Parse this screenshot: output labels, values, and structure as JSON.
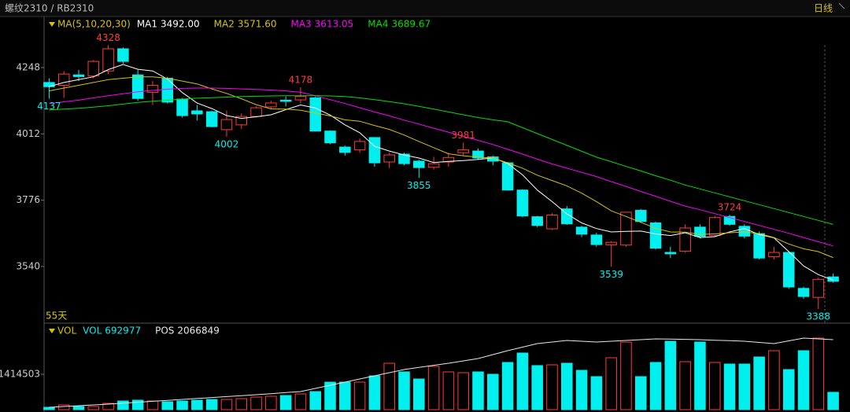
{
  "header": {
    "symbol": "螺纹2310 / RB2310",
    "period": "日线"
  },
  "chart_data": [
    {
      "type": "candlestick",
      "legend_title": "MA(5,10,20,30)",
      "period_label": "55天",
      "up_color": "#ff3b3b",
      "down_color": "#00f0f0",
      "open": [
        4195,
        4185,
        4222,
        4218,
        4236,
        4315,
        4222,
        4160,
        4210,
        4136,
        4094,
        4091,
        4027,
        4044,
        4074,
        4108,
        4132,
        4133,
        4140,
        4022,
        3965,
        3955,
        3999,
        3912,
        3940,
        3915,
        3893,
        3912,
        3945,
        3951,
        3930,
        3909,
        3812,
        3717,
        3674,
        3745,
        3680,
        3652,
        3617,
        3616,
        3740,
        3695,
        3590,
        3594,
        3680,
        3650,
        3718,
        3683,
        3657,
        3575,
        3590,
        3462,
        3430,
        3503
      ],
      "high": [
        4210,
        4235,
        4240,
        4275,
        4328,
        4320,
        4240,
        4200,
        4215,
        4140,
        4115,
        4095,
        4095,
        4085,
        4110,
        4130,
        4145,
        4178,
        4145,
        4025,
        3970,
        3995,
        4000,
        3945,
        3945,
        3920,
        3930,
        3945,
        3981,
        3960,
        3935,
        3912,
        3815,
        3720,
        3730,
        3755,
        3685,
        3660,
        3630,
        3735,
        3745,
        3700,
        3610,
        3690,
        3690,
        3720,
        3724,
        3690,
        3665,
        3610,
        3595,
        3468,
        3500,
        3515
      ],
      "low": [
        4137,
        4140,
        4200,
        4210,
        4225,
        4262,
        4130,
        4115,
        4120,
        4070,
        4060,
        4035,
        4002,
        4030,
        4070,
        4100,
        4110,
        4120,
        4020,
        3975,
        3935,
        3945,
        3895,
        3890,
        3900,
        3855,
        3885,
        3895,
        3935,
        3920,
        3900,
        3810,
        3715,
        3680,
        3670,
        3688,
        3645,
        3610,
        3539,
        3610,
        3695,
        3600,
        3570,
        3590,
        3640,
        3645,
        3685,
        3640,
        3565,
        3565,
        3460,
        3425,
        3388,
        3482
      ],
      "close": [
        4180,
        4225,
        4216,
        4270,
        4315,
        4270,
        4138,
        4185,
        4125,
        4077,
        4083,
        4038,
        4063,
        4074,
        4105,
        4122,
        4128,
        4145,
        4022,
        3980,
        3946,
        3985,
        3909,
        3937,
        3906,
        3892,
        3906,
        3928,
        3955,
        3926,
        3915,
        3812,
        3720,
        3686,
        3723,
        3692,
        3655,
        3618,
        3626,
        3733,
        3700,
        3605,
        3585,
        3677,
        3647,
        3714,
        3690,
        3648,
        3570,
        3590,
        3467,
        3433,
        3494,
        3487
      ],
      "labeled_highs": [
        4,
        17,
        28,
        46
      ],
      "labeled_lows": [
        0,
        12,
        25,
        38,
        52
      ],
      "series": [
        {
          "name": "MA1",
          "color": "#ffffff",
          "current": {
            "value": 3492,
            "label": "3492.00"
          },
          "values": [
            4180,
            4195,
            4205,
            4215,
            4241,
            4259,
            4242,
            4236,
            4207,
            4159,
            4122,
            4102,
            4077,
            4067,
            4073,
            4080,
            4098,
            4115,
            4104,
            4079,
            4044,
            4016,
            3968,
            3951,
            3937,
            3926,
            3910,
            3914,
            3917,
            3921,
            3926,
            3907,
            3866,
            3812,
            3771,
            3727,
            3695,
            3675,
            3663,
            3665,
            3666,
            3656,
            3650,
            3660,
            3643,
            3646,
            3663,
            3675,
            3654,
            3642,
            3593,
            3542,
            3511,
            3492
          ]
        },
        {
          "name": "MA2",
          "color": "#d8c400",
          "current": {
            "value": 3571.6,
            "label": "3571.60"
          },
          "values": [
            4165,
            4175,
            4185,
            4195,
            4205,
            4210,
            4215,
            4215,
            4210,
            4200,
            4190,
            4172,
            4156,
            4137,
            4116,
            4101,
            4100,
            4096,
            4086,
            4076,
            4062,
            4057,
            4042,
            4028,
            4008,
            3985,
            3963,
            3941,
            3934,
            3929,
            3926,
            3909,
            3890,
            3865,
            3846,
            3827,
            3801,
            3771,
            3738,
            3718,
            3697,
            3676,
            3663,
            3662,
            3654,
            3656,
            3660,
            3663,
            3657,
            3643,
            3620,
            3603,
            3593,
            3571.6
          ]
        },
        {
          "name": "MA3",
          "color": "#ff00ff",
          "current": 3613.05,
          "values": [
            4120,
            4126,
            4132,
            4140,
            4148,
            4155,
            4162,
            4167,
            4171,
            4174,
            4175,
            4175,
            4174,
            4172,
            4170,
            4168,
            4165,
            4160,
            4148,
            4134,
            4120,
            4105,
            4090,
            4076,
            4061,
            4047,
            4032,
            4018,
            4003,
            3989,
            3974,
            3957,
            3940,
            3922,
            3905,
            3890,
            3875,
            3860,
            3842,
            3825,
            3807,
            3790,
            3772,
            3755,
            3742,
            3728,
            3714,
            3700,
            3686,
            3672,
            3658,
            3643,
            3628,
            3613.05
          ]
        },
        {
          "name": "MA4",
          "color": "#00e000",
          "current": 3689.67,
          "values": [
            4097,
            4100,
            4103,
            4107,
            4112,
            4118,
            4124,
            4128,
            4132,
            4136,
            4139,
            4141,
            4143,
            4145,
            4146,
            4147,
            4148,
            4148,
            4148,
            4147,
            4145,
            4140,
            4134,
            4127,
            4119,
            4110,
            4100,
            4090,
            4080,
            4070,
            4062,
            4055,
            4034,
            4013,
            3992,
            3971,
            3950,
            3929,
            3913,
            3896,
            3880,
            3863,
            3847,
            3830,
            3816,
            3802,
            3788,
            3774,
            3760,
            3746,
            3732,
            3718,
            3704,
            3689.67
          ]
        }
      ],
      "ylim": [
        3341,
        4427
      ],
      "yticks": [
        3540,
        3776,
        4012,
        4248
      ]
    },
    {
      "type": "bar",
      "legend_title": "VOL",
      "name": "VOL",
      "values": [
        94000,
        188000,
        126000,
        126000,
        251000,
        346000,
        377000,
        346000,
        314000,
        346000,
        377000,
        408000,
        408000,
        440000,
        503000,
        534000,
        566000,
        629000,
        723000,
        1100000,
        1100000,
        1100000,
        1350000,
        1855000,
        1509000,
        1226000,
        1729000,
        1509000,
        1477000,
        1509000,
        1414000,
        1886000,
        2263000,
        1760000,
        1792000,
        1855000,
        1572000,
        1320000,
        2075000,
        2700000,
        1320000,
        1886000,
        2735000,
        1917000,
        2703000,
        1886000,
        1823000,
        1823000,
        2106000,
        2357000,
        1603000,
        2357000,
        2860000,
        692977
      ],
      "color": "#00f0f0",
      "pos": {
        "name": "POS",
        "color": "#e8e8e8",
        "axis": "y2",
        "values": [
          70000,
          93000,
          116000,
          139000,
          162000,
          190000,
          218000,
          246000,
          274000,
          302000,
          330000,
          358000,
          386000,
          414000,
          441000,
          472000,
          503000,
          534000,
          627000,
          720000,
          812000,
          905000,
          998000,
          1091000,
          1184000,
          1246000,
          1308000,
          1369000,
          1439000,
          1509000,
          1625000,
          1741000,
          1846000,
          1950000,
          1997000,
          2043000,
          2020000,
          1996000,
          2020000,
          2043000,
          2066000,
          2089000,
          2081000,
          2074000,
          2066000,
          2050000,
          2035000,
          2019000,
          1985000,
          1950000,
          2031000,
          2112000,
          2090000,
          2066849
        ]
      },
      "ylim": [
        0,
        3426000
      ],
      "yticks": [
        1414503
      ],
      "y2lim": [
        0,
        2530000
      ]
    }
  ]
}
